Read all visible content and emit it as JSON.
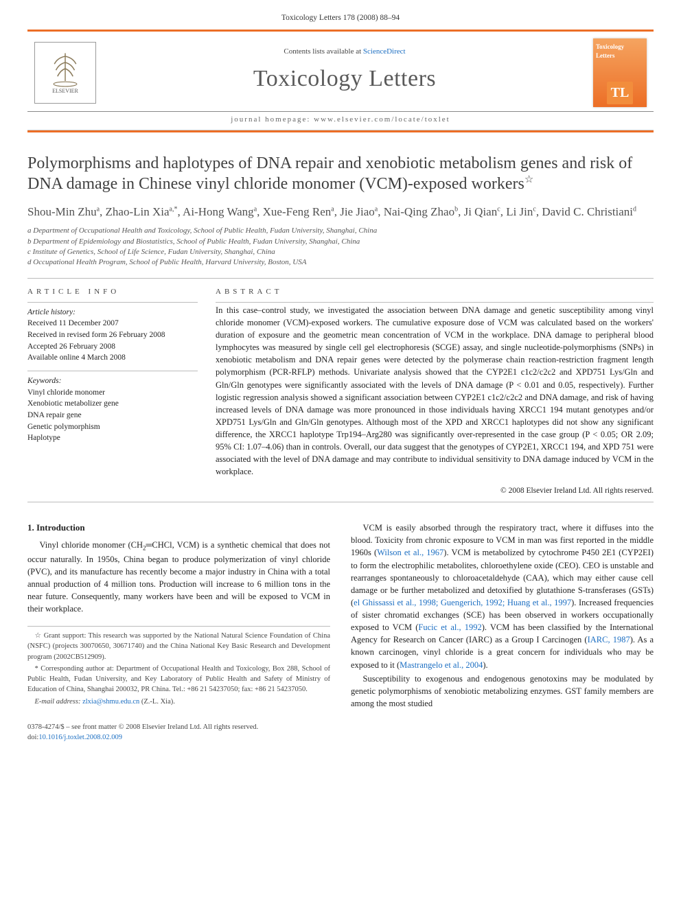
{
  "header": {
    "citation": "Toxicology Letters 178 (2008) 88–94"
  },
  "masthead": {
    "publisher_name": "ELSEVIER",
    "contents_label_pre": "Contents lists available at ",
    "contents_label_link": "ScienceDirect",
    "journal_title": "Toxicology Letters",
    "homepage_label": "journal homepage: www.elsevier.com/locate/toxlet",
    "thumbnail_title": "Toxicology Letters",
    "thumbnail_badge": "TL",
    "accent_color": "#ec6e26"
  },
  "article": {
    "title": "Polymorphisms and haplotypes of DNA repair and xenobiotic metabolism genes and risk of DNA damage in Chinese vinyl chloride monomer (VCM)-exposed workers",
    "footnote_marker": "☆",
    "authors_html": "Shou-Min Zhu<sup>a</sup>, Zhao-Lin Xia<sup>a,*</sup>, Ai-Hong Wang<sup>a</sup>, Xue-Feng Ren<sup>a</sup>, Jie Jiao<sup>a</sup>, Nai-Qing Zhao<sup>b</sup>, Ji Qian<sup>c</sup>, Li Jin<sup>c</sup>, David C. Christiani<sup>d</sup>",
    "affiliations": [
      "a Department of Occupational Health and Toxicology, School of Public Health, Fudan University, Shanghai, China",
      "b Department of Epidemiology and Biostatistics, School of Public Health, Fudan University, Shanghai, China",
      "c Institute of Genetics, School of Life Science, Fudan University, Shanghai, China",
      "d Occupational Health Program, School of Public Health, Harvard University, Boston, USA"
    ]
  },
  "info": {
    "heading": "ARTICLE INFO",
    "history_label": "Article history:",
    "history": [
      "Received 11 December 2007",
      "Received in revised form 26 February 2008",
      "Accepted 26 February 2008",
      "Available online 4 March 2008"
    ],
    "keywords_label": "Keywords:",
    "keywords": [
      "Vinyl chloride monomer",
      "Xenobiotic metabolizer gene",
      "DNA repair gene",
      "Genetic polymorphism",
      "Haplotype"
    ]
  },
  "abstract": {
    "heading": "ABSTRACT",
    "text": "In this case–control study, we investigated the association between DNA damage and genetic susceptibility among vinyl chloride monomer (VCM)-exposed workers. The cumulative exposure dose of VCM was calculated based on the workers' duration of exposure and the geometric mean concentration of VCM in the workplace. DNA damage to peripheral blood lymphocytes was measured by single cell gel electrophoresis (SCGE) assay, and single nucleotide-polymorphisms (SNPs) in xenobiotic metabolism and DNA repair genes were detected by the polymerase chain reaction-restriction fragment length polymorphism (PCR-RFLP) methods. Univariate analysis showed that the CYP2E1 c1c2/c2c2 and XPD751 Lys/Gln and Gln/Gln genotypes were significantly associated with the levels of DNA damage (P < 0.01 and 0.05, respectively). Further logistic regression analysis showed a significant association between CYP2E1 c1c2/c2c2 and DNA damage, and risk of having increased levels of DNA damage was more pronounced in those individuals having XRCC1 194 mutant genotypes and/or XPD751 Lys/Gln and Gln/Gln genotypes. Although most of the XPD and XRCC1 haplotypes did not show any significant difference, the XRCC1 haplotype Trp194–Arg280 was significantly over-represented in the case group (P < 0.05; OR 2.09; 95% CI:  1.07–4.06) than in controls. Overall, our data suggest that the genotypes of CYP2E1, XRCC1 194, and XPD 751 were associated with the level of DNA damage and may contribute to individual sensitivity to DNA damage induced by VCM in the workplace.",
    "copyright": "© 2008 Elsevier Ireland Ltd. All rights reserved."
  },
  "body": {
    "section1_heading": "1.  Introduction",
    "col1_p1_pre": "Vinyl chloride monomer (CH",
    "col1_p1_sub": "2",
    "col1_p1_post": "═CHCl, VCM) is a synthetic chemical that does not occur naturally. In 1950s, China began to produce polymerization of vinyl chloride (PVC), and its manufacture has recently become a major industry in China with a total annual production of 4 million tons. Production will increase to 6 million tons in the near future. Consequently, many workers have been and will be exposed to VCM in their workplace.",
    "col2_p1": "VCM is easily absorbed through the respiratory tract, where it diffuses into the blood. Toxicity from chronic exposure to VCM in man was first reported in the middle 1960s (",
    "ref1": "Wilson et al., 1967",
    "col2_p1b": "). VCM is metabolized by cytochrome P450 2E1 (CYP2EI) to form the electrophilic metabolites, chloroethylene oxide (CEO). CEO is unstable and rearranges spontaneously to chloroacetaldehyde (CAA), which may either cause cell damage or be further metabolized and detoxified by glutathione S-transferases (GSTs) (",
    "ref2": "el Ghissassi et al., 1998; Guengerich, 1992; Huang et al., 1997",
    "col2_p1c": "). Increased frequencies of sister chromatid exchanges (SCE) has been observed in workers occupationally exposed to VCM (",
    "ref3": "Fucic et al., 1992",
    "col2_p1d": "). VCM has been classified by the International Agency for Research on Cancer (IARC) as a Group I Carcinogen (",
    "ref4": "IARC, 1987",
    "col2_p1e": "). As a known carcinogen, vinyl chloride is a great concern for individuals who may be exposed to it (",
    "ref5": "Mastrangelo et al., 2004",
    "col2_p1f": ").",
    "col2_p2": "Susceptibility to exogenous and endogenous genotoxins may be modulated by genetic polymorphisms of xenobiotic metabolizing enzymes. GST family members are among the most studied"
  },
  "footnotes": {
    "grant": "☆  Grant support: This research was supported by the National Natural Science Foundation of China (NSFC) (projects 30070650, 30671740) and the China National Key Basic Research and Development program (2002CB512909).",
    "corresponding": "*  Corresponding author at: Department of Occupational Health and Toxicology, Box 288, School of Public Health, Fudan University, and Key Laboratory of Public Health and Safety of Ministry of Education of China, Shanghai 200032, PR China. Tel.: +86 21 54237050; fax: +86 21 54237050.",
    "email_label": "E-mail address: ",
    "email": "zlxia@shmu.edu.cn",
    "email_suffix": " (Z.-L. Xia)."
  },
  "doi": {
    "line1": "0378-4274/$ – see front matter © 2008 Elsevier Ireland Ltd. All rights reserved.",
    "line2_pre": "doi:",
    "line2_link": "10.1016/j.toxlet.2008.02.009"
  }
}
